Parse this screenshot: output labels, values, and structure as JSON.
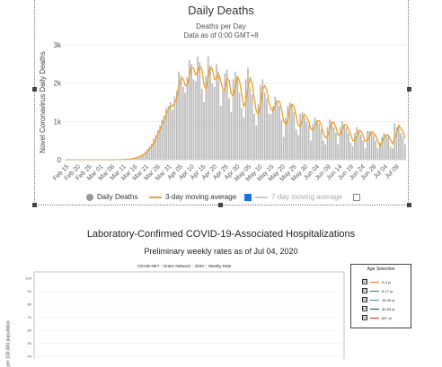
{
  "deaths_panel": {
    "title": "Daily Deaths",
    "subtitle": "Deaths per Day",
    "subtitle2": "Data as of 0:00 GMT+8",
    "legend": {
      "daily_deaths": "Daily Deaths",
      "ma3": "3-day moving average",
      "ma7": "7-day moving average"
    }
  },
  "chart_data": [
    {
      "type": "bar",
      "title": "Daily Deaths",
      "ylabel": "Novel Coronavirus Daily Deaths",
      "ylim": [
        0,
        3000
      ],
      "y_ticks": [
        "0",
        "1k",
        "2k",
        "3k"
      ],
      "x_ticks": [
        "Feb 15",
        "Feb 20",
        "Feb 25",
        "Mar 01",
        "Mar 06",
        "Mar 11",
        "Mar 16",
        "Mar 21",
        "Mar 26",
        "Mar 31",
        "Apr 05",
        "Apr 10",
        "Apr 15",
        "Apr 20",
        "Apr 25",
        "Apr 30",
        "May 05",
        "May 10",
        "May 15",
        "May 20",
        "May 25",
        "May 30",
        "Jun 04",
        "Jun 09",
        "Jun 14",
        "Jun 19",
        "Jun 24",
        "Jun 29",
        "Jul 04",
        "Jul 09"
      ],
      "series": [
        {
          "name": "Daily Deaths",
          "values": [
            0,
            0,
            0,
            0,
            0,
            0,
            0,
            0,
            0,
            0,
            0,
            0,
            0,
            0,
            0,
            0,
            0,
            0,
            0,
            0,
            0,
            0,
            1,
            1,
            2,
            3,
            5,
            8,
            10,
            15,
            20,
            28,
            40,
            55,
            75,
            90,
            120,
            160,
            210,
            280,
            340,
            420,
            550,
            650,
            780,
            900,
            1050,
            1150,
            1350,
            1400,
            1500,
            1300,
            1650,
            1800,
            2300,
            2200,
            1900,
            1750,
            2150,
            2600,
            2500,
            2100,
            2050,
            2700,
            2550,
            1850,
            1500,
            2200,
            2700,
            2400,
            2000,
            1900,
            2500,
            2300,
            1400,
            1800,
            2250,
            2350,
            1600,
            1250,
            2100,
            2300,
            2100,
            1750,
            1350,
            1100,
            2100,
            2400,
            1900,
            1700,
            1200,
            900,
            1450,
            1950,
            2100,
            1750,
            1600,
            1200,
            1200,
            1400,
            1650,
            1550,
            1400,
            1050,
            600,
            1100,
            1400,
            1500,
            1450,
            1250,
            800,
            650,
            1200,
            1250,
            1100,
            1000,
            900,
            500,
            950,
            1100,
            1000,
            950,
            800,
            500,
            400,
            850,
            1050,
            1000,
            850,
            700,
            400,
            850,
            1000,
            900,
            850,
            700,
            450,
            350,
            700,
            850,
            750,
            650,
            500,
            300,
            750,
            750,
            700,
            650,
            500,
            300,
            450,
            600,
            700,
            650,
            600,
            350,
            300,
            950,
            850,
            900,
            700,
            600,
            400
          ]
        },
        {
          "name": "3-day moving average",
          "values": [
            0,
            0,
            0,
            0,
            0,
            0,
            0,
            0,
            0,
            0,
            0,
            0,
            0,
            0,
            0,
            0,
            0,
            0,
            0,
            0,
            0,
            0,
            1,
            1,
            1,
            2,
            3,
            5,
            8,
            11,
            14,
            21,
            29,
            41,
            57,
            73,
            95,
            123,
            163,
            217,
            277,
            347,
            437,
            540,
            660,
            777,
            910,
            1033,
            1183,
            1300,
            1417,
            1400,
            1483,
            1583,
            1917,
            2100,
            2133,
            1950,
            1933,
            2167,
            2417,
            2400,
            2217,
            2283,
            2433,
            2367,
            1967,
            1850,
            2133,
            2433,
            2367,
            2100,
            2133,
            2233,
            2067,
            1833,
            1817,
            2133,
            2067,
            1733,
            1650,
            1883,
            2167,
            2050,
            1733,
            1400,
            1517,
            1867,
            2133,
            2000,
            1600,
            1267,
            1183,
            1433,
            1833,
            1933,
            1817,
            1517,
            1333,
            1267,
            1417,
            1533,
            1533,
            1333,
            1017,
            917,
            1033,
            1333,
            1450,
            1400,
            1167,
            900,
            883,
            1033,
            1183,
            1117,
            1000,
            800,
            783,
            850,
            1017,
            1017,
            917,
            700,
            567,
            617,
            767,
            967,
            967,
            850,
            650,
            650,
            767,
            917,
            917,
            817,
            667,
            500,
            500,
            633,
            767,
            750,
            633,
            483,
            517,
            600,
            733,
            700,
            617,
            483,
            350,
            450,
            583,
            650,
            650,
            533,
            417,
            533,
            700,
            900,
            817,
            733,
            567
          ]
        }
      ]
    },
    {
      "type": "line",
      "title": "COVID-NET :: Entire Network :: 2020 :: Weekly Rate",
      "ylabel": "per 100,000 population",
      "ylim": [
        0,
        100
      ],
      "y_ticks": [
        "100",
        "90",
        "80",
        "70",
        "60",
        "50",
        "40"
      ],
      "series": [
        {
          "name": "0-4 yr",
          "values": []
        },
        {
          "name": "5-17 yr",
          "values": []
        },
        {
          "name": "18-49 yr",
          "values": []
        },
        {
          "name": "50-64 yr",
          "values": []
        },
        {
          "name": "65+ yr",
          "values": []
        }
      ]
    }
  ],
  "hospital_section": {
    "heading": "Laboratory-Confirmed COVID-19-Associated Hospitalizations",
    "subheading": "Preliminary weekly rates as of Jul 04, 2020",
    "chart_title": "COVID-NET :: Entire Network :: 2020 :: Weekly Rate",
    "ylabel": "per 100,000 population",
    "age_selection": {
      "title": "Age Selection",
      "items": [
        {
          "label": "0-4 yr",
          "color": "#e07b39",
          "checked": "☑"
        },
        {
          "label": "5-17 yr",
          "color": "#2a6fb0",
          "checked": "☑"
        },
        {
          "label": "18-49 yr",
          "color": "#3d8a8a",
          "checked": "☑"
        },
        {
          "label": "50-64 yr",
          "color": "#1f3f7a",
          "checked": "☑"
        },
        {
          "label": "65+ yr",
          "color": "#c0392b",
          "checked": "☑"
        }
      ]
    }
  },
  "colors": {
    "bar": "#b8b8b8",
    "ma3": "#f0a020",
    "ma7": "#c8c8c8",
    "grid": "#e6e6e6"
  }
}
